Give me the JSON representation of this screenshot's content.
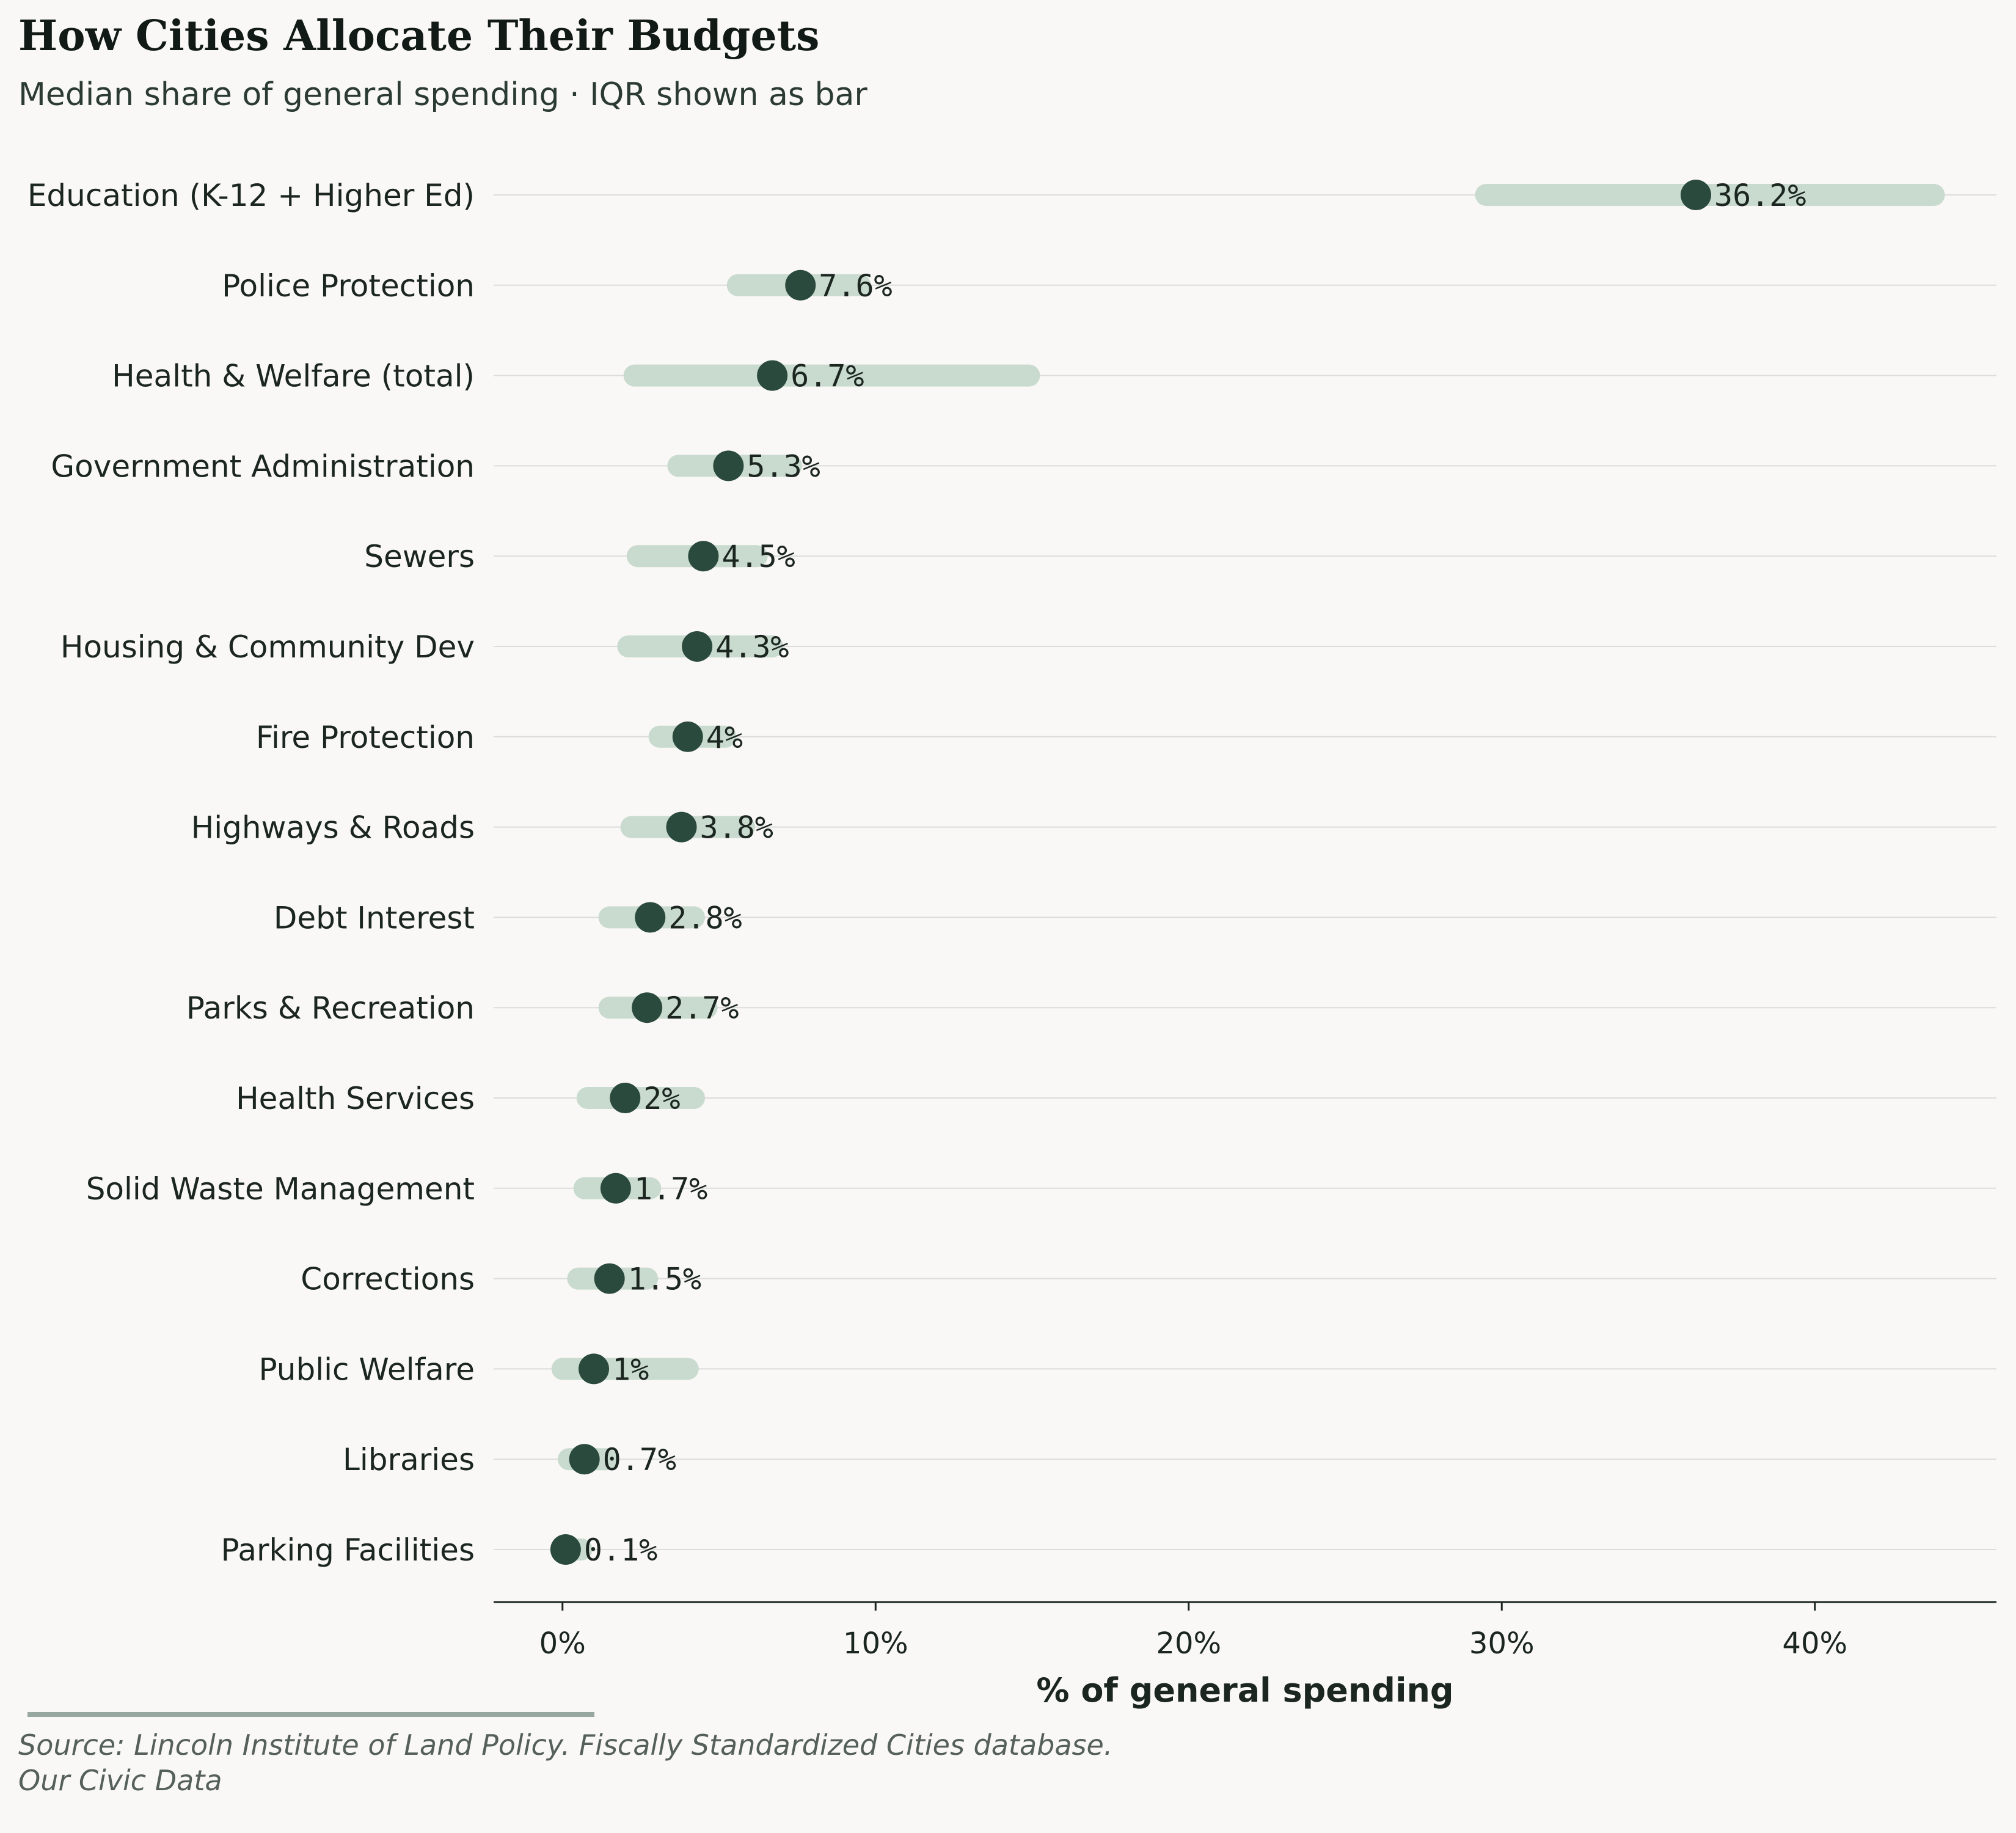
{
  "chart_data": {
    "type": "dot-range",
    "title": "How Cities Allocate Their Budgets",
    "subtitle": "Median share of general spending · IQR shown as bar",
    "xlabel": "% of general spending",
    "ylabel": "",
    "xlim": [
      -2.2,
      45.8
    ],
    "xticks": [
      0,
      10,
      20,
      30,
      40
    ],
    "xtick_labels": [
      "0%",
      "10%",
      "20%",
      "30%",
      "40%"
    ],
    "grid": "horizontal",
    "categories": [
      "Education (K-12 + Higher Ed)",
      "Police Protection",
      "Health & Welfare (total)",
      "Government Administration",
      "Sewers",
      "Housing & Community Dev",
      "Fire Protection",
      "Highways & Roads",
      "Debt Interest",
      "Parks & Recreation",
      "Health Services",
      "Solid Waste Management",
      "Corrections",
      "Public Welfare",
      "Libraries",
      "Parking Facilities"
    ],
    "median": [
      36.2,
      7.6,
      6.7,
      5.3,
      4.5,
      4.3,
      4.0,
      3.8,
      2.8,
      2.7,
      2.0,
      1.7,
      1.5,
      1.0,
      0.7,
      0.1
    ],
    "value_labels": [
      "36.2%",
      "7.6%",
      "6.7%",
      "5.3%",
      "4.5%",
      "4.3%",
      "4%",
      "3.8%",
      "2.8%",
      "2.7%",
      "2%",
      "1.7%",
      "1.5%",
      "1%",
      "0.7%",
      "0.1%"
    ],
    "iqr_low": [
      29.5,
      5.6,
      2.3,
      3.7,
      2.4,
      2.1,
      3.1,
      2.2,
      1.5,
      1.5,
      0.8,
      0.7,
      0.5,
      0.0,
      0.2,
      0.0
    ],
    "iqr_high": [
      43.8,
      9.5,
      14.9,
      7.3,
      6.2,
      6.7,
      5.2,
      5.8,
      4.2,
      4.6,
      4.2,
      2.8,
      2.7,
      4.0,
      1.4,
      0.6
    ],
    "colors": {
      "dot": "#2b4a3e",
      "iqr_bar": "#c9dace",
      "grid": "#dcdcda",
      "axis": "#1c2621",
      "source_rule": "#97a89f"
    }
  },
  "source": {
    "line1": "Source: Lincoln Institute of Land Policy. Fiscally Standardized Cities database.",
    "line2": "Our Civic Data"
  }
}
